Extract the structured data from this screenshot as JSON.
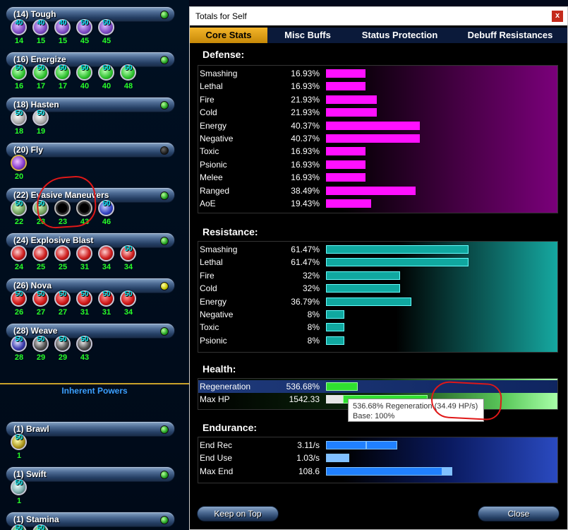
{
  "left": {
    "powers": [
      {
        "title": "(14) Tough",
        "led": "green",
        "style": "tough",
        "slots": [
          {
            "lvl": "40",
            "slv": "14"
          },
          {
            "lvl": "40",
            "slv": "15"
          },
          {
            "lvl": "40",
            "slv": "15"
          },
          {
            "lvl": "50",
            "slv": "45"
          },
          {
            "lvl": "50",
            "slv": "45"
          }
        ]
      },
      {
        "title": "(16) Energize",
        "led": "green",
        "style": "energ",
        "slots": [
          {
            "lvl": "50",
            "slv": "16"
          },
          {
            "lvl": "50",
            "slv": "17"
          },
          {
            "lvl": "50",
            "slv": "17"
          },
          {
            "lvl": "50",
            "slv": "40"
          },
          {
            "lvl": "50",
            "slv": "40"
          },
          {
            "lvl": "50",
            "slv": "48"
          }
        ]
      },
      {
        "title": "(18) Hasten",
        "led": "green",
        "style": "haste",
        "slots": [
          {
            "lvl": "50",
            "slv": "18"
          },
          {
            "lvl": "50",
            "slv": "19"
          }
        ]
      },
      {
        "title": "(20) Fly",
        "led": "dark",
        "style": "fly",
        "slots": [
          {
            "lvl": "",
            "slv": "20"
          }
        ]
      },
      {
        "title": "(22) Evasive Maneuvers",
        "led": "green",
        "style": "evas",
        "slots": [
          {
            "lvl": "50",
            "slv": "22"
          },
          {
            "lvl": "50",
            "slv": "23"
          },
          {
            "lvl": "",
            "slv": "23",
            "empty": true
          },
          {
            "lvl": "",
            "slv": "43",
            "empty": true
          },
          {
            "lvl": "50",
            "slv": "46",
            "alt": "evas3"
          }
        ]
      },
      {
        "title": "(24) Explosive Blast",
        "led": "green",
        "style": "exp",
        "slots": [
          {
            "lvl": "",
            "slv": "24"
          },
          {
            "lvl": "",
            "slv": "25"
          },
          {
            "lvl": "",
            "slv": "25"
          },
          {
            "lvl": "",
            "slv": "31"
          },
          {
            "lvl": "",
            "slv": "34"
          },
          {
            "lvl": "50",
            "slv": "34"
          }
        ]
      },
      {
        "title": "(26) Nova",
        "led": "yellow",
        "style": "nova",
        "slots": [
          {
            "lvl": "50",
            "slv": "26"
          },
          {
            "lvl": "50",
            "slv": "27"
          },
          {
            "lvl": "50",
            "slv": "27"
          },
          {
            "lvl": "50",
            "slv": "31"
          },
          {
            "lvl": "50",
            "slv": "31"
          },
          {
            "lvl": "50",
            "slv": "34"
          }
        ]
      },
      {
        "title": "(28) Weave",
        "led": "green",
        "style": "weave",
        "slots": [
          {
            "lvl": "50",
            "slv": "28"
          },
          {
            "lvl": "50",
            "slv": "29"
          },
          {
            "lvl": "50",
            "slv": "29"
          },
          {
            "lvl": "50",
            "slv": "43"
          }
        ]
      }
    ],
    "inherent_label": "Inherent Powers",
    "inherent": [
      {
        "title": "(1) Brawl",
        "led": "green",
        "style": "brawl",
        "slots": [
          {
            "lvl": "50",
            "slv": "1"
          }
        ]
      },
      {
        "title": "(1) Swift",
        "led": "green",
        "style": "swift",
        "slots": [
          {
            "lvl": "50",
            "slv": "1"
          }
        ]
      },
      {
        "title": "(1) Stamina",
        "led": "green",
        "style": "stam",
        "slots": [
          {
            "lvl": "50",
            "slv": ""
          },
          {
            "lvl": "50",
            "slv": ""
          }
        ]
      }
    ]
  },
  "window": {
    "title": "Totals for Self",
    "close_glyph": "x",
    "tabs": [
      "Core Stats",
      "Misc Buffs",
      "Status Protection",
      "Debuff Resistances"
    ],
    "defense": {
      "heading": "Defense:",
      "rows": [
        {
          "label": "Smashing",
          "value": "16.93%",
          "pct": 16.93
        },
        {
          "label": "Lethal",
          "value": "16.93%",
          "pct": 16.93
        },
        {
          "label": "Fire",
          "value": "21.93%",
          "pct": 21.93
        },
        {
          "label": "Cold",
          "value": "21.93%",
          "pct": 21.93
        },
        {
          "label": "Energy",
          "value": "40.37%",
          "pct": 40.37
        },
        {
          "label": "Negative",
          "value": "40.37%",
          "pct": 40.37
        },
        {
          "label": "Toxic",
          "value": "16.93%",
          "pct": 16.93
        },
        {
          "label": "Psionic",
          "value": "16.93%",
          "pct": 16.93
        },
        {
          "label": "Melee",
          "value": "16.93%",
          "pct": 16.93
        },
        {
          "label": "Ranged",
          "value": "38.49%",
          "pct": 38.49
        },
        {
          "label": "AoE",
          "value": "19.43%",
          "pct": 19.43
        }
      ]
    },
    "resistance": {
      "heading": "Resistance:",
      "rows": [
        {
          "label": "Smashing",
          "value": "61.47%",
          "pct": 61.47
        },
        {
          "label": "Lethal",
          "value": "61.47%",
          "pct": 61.47
        },
        {
          "label": "Fire",
          "value": "32%",
          "pct": 32
        },
        {
          "label": "Cold",
          "value": "32%",
          "pct": 32
        },
        {
          "label": "Energy",
          "value": "36.79%",
          "pct": 36.79
        },
        {
          "label": "Negative",
          "value": "8%",
          "pct": 8
        },
        {
          "label": "Toxic",
          "value": "8%",
          "pct": 8
        },
        {
          "label": "Psionic",
          "value": "8%",
          "pct": 8
        }
      ]
    },
    "health": {
      "heading": "Health:",
      "rows": [
        {
          "label": "Regeneration",
          "value": "536.68%",
          "pct": 536.68
        },
        {
          "label": "Max HP",
          "value": "1542.33",
          "pct": 1542.33
        }
      ],
      "tooltip_line1": "536.68% Regeneration (34.49 HP/s)",
      "tooltip_line2": "Base: 100%"
    },
    "endurance": {
      "heading": "Endurance:",
      "rows": [
        {
          "label": "End Rec",
          "value": "3.11/s",
          "pct": 3.11
        },
        {
          "label": "End Use",
          "value": "1.03/s",
          "pct": 1.03
        },
        {
          "label": "Max End",
          "value": "108.6",
          "pct": 108.6
        }
      ]
    },
    "keep_on_top": "Keep on Top",
    "close": "Close"
  },
  "colors": {
    "tab_active": "#f4b52a",
    "defense_bar": "#ff10ff",
    "resistance_bar": "#10a8a0",
    "health_bar": "#30e030",
    "endurance_bar": "#2080ff",
    "annotation": "#e01818"
  }
}
